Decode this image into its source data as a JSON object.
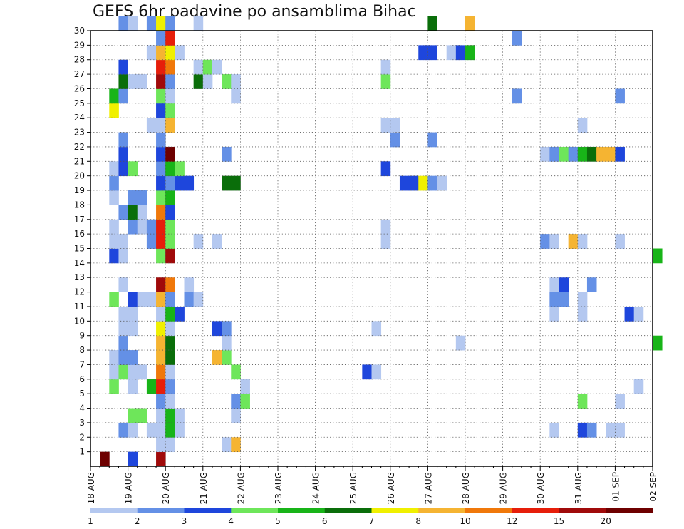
{
  "chart_data": {
    "type": "heatmap",
    "title": "GEFS 6hr padavine po ansamblima Bihac",
    "x_tick_labels": [
      "18 AUG",
      "19 AUG",
      "20 AUG",
      "21 AUG",
      "22 AUG",
      "23 AUG",
      "24 AUG",
      "25 AUG",
      "26 AUG",
      "27 AUG",
      "28 AUG",
      "29 AUG",
      "30 AUG",
      "31 AUG",
      "01 SEP",
      "02 SEP"
    ],
    "y_tick_labels": [
      "1",
      "2",
      "3",
      "4",
      "5",
      "6",
      "7",
      "8",
      "9",
      "10",
      "11",
      "12",
      "13",
      "14",
      "15",
      "16",
      "17",
      "18",
      "19",
      "20",
      "21",
      "22",
      "23",
      "24",
      "25",
      "26",
      "27",
      "28",
      "29",
      "30"
    ],
    "x_range_steps": [
      0,
      60
    ],
    "y_range": [
      0,
      30
    ],
    "grid": true,
    "colorbar": {
      "labels": [
        "1",
        "2",
        "3",
        "4",
        "5",
        "6",
        "7",
        "8",
        "10",
        "12",
        "15",
        "20"
      ],
      "colors": [
        "#b4c8f0",
        "#6490e6",
        "#1e46dc",
        "#6ee65a",
        "#18b418",
        "#0a6e0a",
        "#f0f000",
        "#f5b432",
        "#f0780a",
        "#e61e0a",
        "#a00a0a",
        "#6e0000"
      ]
    },
    "cells": [
      {
        "member": 0,
        "step": 1,
        "class": 11
      },
      {
        "member": 0,
        "step": 4,
        "class": 2
      },
      {
        "member": 0,
        "step": 7,
        "class": 10
      },
      {
        "member": 1,
        "step": 7,
        "class": 0
      },
      {
        "member": 1,
        "step": 8,
        "class": 0
      },
      {
        "member": 1,
        "step": 14,
        "class": 0
      },
      {
        "member": 1,
        "step": 15,
        "class": 7
      },
      {
        "member": 2,
        "step": 3,
        "class": 1
      },
      {
        "member": 2,
        "step": 4,
        "class": 0
      },
      {
        "member": 2,
        "step": 6,
        "class": 0
      },
      {
        "member": 2,
        "step": 7,
        "class": 0
      },
      {
        "member": 2,
        "step": 8,
        "class": 4
      },
      {
        "member": 2,
        "step": 9,
        "class": 0
      },
      {
        "member": 2,
        "step": 49,
        "class": 0
      },
      {
        "member": 2,
        "step": 52,
        "class": 2
      },
      {
        "member": 2,
        "step": 53,
        "class": 1
      },
      {
        "member": 2,
        "step": 55,
        "class": 0
      },
      {
        "member": 2,
        "step": 56,
        "class": 0
      },
      {
        "member": 3,
        "step": 4,
        "class": 3
      },
      {
        "member": 3,
        "step": 5,
        "class": 3
      },
      {
        "member": 3,
        "step": 7,
        "class": 0
      },
      {
        "member": 3,
        "step": 8,
        "class": 4
      },
      {
        "member": 3,
        "step": 9,
        "class": 0
      },
      {
        "member": 3,
        "step": 15,
        "class": 0
      },
      {
        "member": 4,
        "step": 7,
        "class": 1
      },
      {
        "member": 4,
        "step": 8,
        "class": 0
      },
      {
        "member": 4,
        "step": 15,
        "class": 1
      },
      {
        "member": 4,
        "step": 16,
        "class": 3
      },
      {
        "member": 4,
        "step": 52,
        "class": 3
      },
      {
        "member": 4,
        "step": 56,
        "class": 0
      },
      {
        "member": 5,
        "step": 2,
        "class": 3
      },
      {
        "member": 5,
        "step": 4,
        "class": 0
      },
      {
        "member": 5,
        "step": 6,
        "class": 4
      },
      {
        "member": 5,
        "step": 7,
        "class": 9
      },
      {
        "member": 5,
        "step": 8,
        "class": 1
      },
      {
        "member": 5,
        "step": 16,
        "class": 0
      },
      {
        "member": 5,
        "step": 58,
        "class": 0
      },
      {
        "member": 6,
        "step": 2,
        "class": 0
      },
      {
        "member": 6,
        "step": 3,
        "class": 3
      },
      {
        "member": 6,
        "step": 4,
        "class": 0
      },
      {
        "member": 6,
        "step": 5,
        "class": 0
      },
      {
        "member": 6,
        "step": 7,
        "class": 8
      },
      {
        "member": 6,
        "step": 8,
        "class": 0
      },
      {
        "member": 6,
        "step": 15,
        "class": 3
      },
      {
        "member": 6,
        "step": 29,
        "class": 2
      },
      {
        "member": 6,
        "step": 30,
        "class": 0
      },
      {
        "member": 7,
        "step": 2,
        "class": 0
      },
      {
        "member": 7,
        "step": 3,
        "class": 1
      },
      {
        "member": 7,
        "step": 4,
        "class": 1
      },
      {
        "member": 7,
        "step": 7,
        "class": 7
      },
      {
        "member": 7,
        "step": 8,
        "class": 5
      },
      {
        "member": 7,
        "step": 13,
        "class": 7
      },
      {
        "member": 7,
        "step": 14,
        "class": 3
      },
      {
        "member": 8,
        "step": 3,
        "class": 1
      },
      {
        "member": 8,
        "step": 7,
        "class": 7
      },
      {
        "member": 8,
        "step": 8,
        "class": 5
      },
      {
        "member": 8,
        "step": 14,
        "class": 0
      },
      {
        "member": 8,
        "step": 39,
        "class": 0
      },
      {
        "member": 8,
        "step": 60,
        "class": 4
      },
      {
        "member": 9,
        "step": 3,
        "class": 0
      },
      {
        "member": 9,
        "step": 4,
        "class": 0
      },
      {
        "member": 9,
        "step": 7,
        "class": 6
      },
      {
        "member": 9,
        "step": 8,
        "class": 0
      },
      {
        "member": 9,
        "step": 13,
        "class": 2
      },
      {
        "member": 9,
        "step": 14,
        "class": 1
      },
      {
        "member": 9,
        "step": 30,
        "class": 0
      },
      {
        "member": 10,
        "step": 3,
        "class": 0
      },
      {
        "member": 10,
        "step": 4,
        "class": 0
      },
      {
        "member": 10,
        "step": 7,
        "class": 0
      },
      {
        "member": 10,
        "step": 8,
        "class": 4
      },
      {
        "member": 10,
        "step": 9,
        "class": 2
      },
      {
        "member": 10,
        "step": 49,
        "class": 0
      },
      {
        "member": 10,
        "step": 52,
        "class": 0
      },
      {
        "member": 10,
        "step": 57,
        "class": 2
      },
      {
        "member": 10,
        "step": 58,
        "class": 0
      },
      {
        "member": 11,
        "step": 2,
        "class": 3
      },
      {
        "member": 11,
        "step": 4,
        "class": 2
      },
      {
        "member": 11,
        "step": 5,
        "class": 0
      },
      {
        "member": 11,
        "step": 6,
        "class": 0
      },
      {
        "member": 11,
        "step": 7,
        "class": 7
      },
      {
        "member": 11,
        "step": 8,
        "class": 1
      },
      {
        "member": 11,
        "step": 10,
        "class": 1
      },
      {
        "member": 11,
        "step": 11,
        "class": 0
      },
      {
        "member": 11,
        "step": 49,
        "class": 1
      },
      {
        "member": 11,
        "step": 50,
        "class": 1
      },
      {
        "member": 11,
        "step": 52,
        "class": 0
      },
      {
        "member": 12,
        "step": 3,
        "class": 0
      },
      {
        "member": 12,
        "step": 7,
        "class": 10
      },
      {
        "member": 12,
        "step": 8,
        "class": 8
      },
      {
        "member": 12,
        "step": 10,
        "class": 0
      },
      {
        "member": 12,
        "step": 49,
        "class": 0
      },
      {
        "member": 12,
        "step": 50,
        "class": 2
      },
      {
        "member": 12,
        "step": 53,
        "class": 1
      },
      {
        "member": 14,
        "step": 7,
        "class": 3
      },
      {
        "member": 14,
        "step": 8,
        "class": 10
      },
      {
        "member": 14,
        "step": 2,
        "class": 2
      },
      {
        "member": 14,
        "step": 3,
        "class": 0
      },
      {
        "member": 14,
        "step": 60,
        "class": 4
      },
      {
        "member": 15,
        "step": 2,
        "class": 0
      },
      {
        "member": 15,
        "step": 3,
        "class": 0
      },
      {
        "member": 15,
        "step": 6,
        "class": 1
      },
      {
        "member": 15,
        "step": 7,
        "class": 9
      },
      {
        "member": 15,
        "step": 8,
        "class": 3
      },
      {
        "member": 15,
        "step": 11,
        "class": 0
      },
      {
        "member": 15,
        "step": 13,
        "class": 0
      },
      {
        "member": 15,
        "step": 31,
        "class": 0
      },
      {
        "member": 15,
        "step": 48,
        "class": 1
      },
      {
        "member": 15,
        "step": 49,
        "class": 0
      },
      {
        "member": 15,
        "step": 51,
        "class": 7
      },
      {
        "member": 15,
        "step": 52,
        "class": 0
      },
      {
        "member": 15,
        "step": 56,
        "class": 0
      },
      {
        "member": 16,
        "step": 2,
        "class": 0
      },
      {
        "member": 16,
        "step": 4,
        "class": 1
      },
      {
        "member": 16,
        "step": 5,
        "class": 0
      },
      {
        "member": 16,
        "step": 6,
        "class": 1
      },
      {
        "member": 16,
        "step": 7,
        "class": 9
      },
      {
        "member": 16,
        "step": 8,
        "class": 3
      },
      {
        "member": 16,
        "step": 31,
        "class": 0
      },
      {
        "member": 17,
        "step": 3,
        "class": 1
      },
      {
        "member": 17,
        "step": 4,
        "class": 5
      },
      {
        "member": 17,
        "step": 5,
        "class": 0
      },
      {
        "member": 17,
        "step": 7,
        "class": 8
      },
      {
        "member": 17,
        "step": 8,
        "class": 2
      },
      {
        "member": 18,
        "step": 2,
        "class": 0
      },
      {
        "member": 18,
        "step": 4,
        "class": 1
      },
      {
        "member": 18,
        "step": 5,
        "class": 1
      },
      {
        "member": 18,
        "step": 7,
        "class": 3
      },
      {
        "member": 18,
        "step": 8,
        "class": 4
      },
      {
        "member": 19,
        "step": 2,
        "class": 1
      },
      {
        "member": 19,
        "step": 7,
        "class": 2
      },
      {
        "member": 19,
        "step": 8,
        "class": 1
      },
      {
        "member": 19,
        "step": 9,
        "class": 2
      },
      {
        "member": 19,
        "step": 10,
        "class": 2
      },
      {
        "member": 19,
        "step": 14,
        "class": 5
      },
      {
        "member": 19,
        "step": 15,
        "class": 5
      },
      {
        "member": 19,
        "step": 33,
        "class": 2
      },
      {
        "member": 19,
        "step": 34,
        "class": 2
      },
      {
        "member": 19,
        "step": 35,
        "class": 6
      },
      {
        "member": 19,
        "step": 36,
        "class": 1
      },
      {
        "member": 19,
        "step": 37,
        "class": 0
      },
      {
        "member": 20,
        "step": 2,
        "class": 0
      },
      {
        "member": 20,
        "step": 3,
        "class": 2
      },
      {
        "member": 20,
        "step": 4,
        "class": 3
      },
      {
        "member": 20,
        "step": 7,
        "class": 1
      },
      {
        "member": 20,
        "step": 8,
        "class": 4
      },
      {
        "member": 20,
        "step": 9,
        "class": 3
      },
      {
        "member": 20,
        "step": 31,
        "class": 2
      },
      {
        "member": 21,
        "step": 3,
        "class": 2
      },
      {
        "member": 21,
        "step": 7,
        "class": 2
      },
      {
        "member": 21,
        "step": 8,
        "class": 11
      },
      {
        "member": 21,
        "step": 14,
        "class": 1
      },
      {
        "member": 21,
        "step": 48,
        "class": 0
      },
      {
        "member": 21,
        "step": 49,
        "class": 1
      },
      {
        "member": 21,
        "step": 50,
        "class": 3
      },
      {
        "member": 21,
        "step": 51,
        "class": 1
      },
      {
        "member": 21,
        "step": 52,
        "class": 4
      },
      {
        "member": 21,
        "step": 53,
        "class": 5
      },
      {
        "member": 21,
        "step": 54,
        "class": 7
      },
      {
        "member": 21,
        "step": 55,
        "class": 7
      },
      {
        "member": 21,
        "step": 56,
        "class": 2
      },
      {
        "member": 22,
        "step": 3,
        "class": 1
      },
      {
        "member": 22,
        "step": 7,
        "class": 1
      },
      {
        "member": 22,
        "step": 32,
        "class": 1
      },
      {
        "member": 22,
        "step": 36,
        "class": 1
      },
      {
        "member": 23,
        "step": 6,
        "class": 0
      },
      {
        "member": 23,
        "step": 7,
        "class": 0
      },
      {
        "member": 23,
        "step": 8,
        "class": 7
      },
      {
        "member": 23,
        "step": 31,
        "class": 0
      },
      {
        "member": 23,
        "step": 32,
        "class": 0
      },
      {
        "member": 23,
        "step": 52,
        "class": 0
      },
      {
        "member": 24,
        "step": 2,
        "class": 6
      },
      {
        "member": 24,
        "step": 7,
        "class": 2
      },
      {
        "member": 24,
        "step": 8,
        "class": 3
      },
      {
        "member": 25,
        "step": 2,
        "class": 4
      },
      {
        "member": 25,
        "step": 3,
        "class": 1
      },
      {
        "member": 25,
        "step": 7,
        "class": 3
      },
      {
        "member": 25,
        "step": 8,
        "class": 0
      },
      {
        "member": 25,
        "step": 15,
        "class": 0
      },
      {
        "member": 25,
        "step": 45,
        "class": 1
      },
      {
        "member": 25,
        "step": 56,
        "class": 1
      },
      {
        "member": 26,
        "step": 3,
        "class": 5
      },
      {
        "member": 26,
        "step": 4,
        "class": 0
      },
      {
        "member": 26,
        "step": 5,
        "class": 0
      },
      {
        "member": 26,
        "step": 7,
        "class": 10
      },
      {
        "member": 26,
        "step": 8,
        "class": 1
      },
      {
        "member": 26,
        "step": 11,
        "class": 5
      },
      {
        "member": 26,
        "step": 12,
        "class": 0
      },
      {
        "member": 26,
        "step": 14,
        "class": 3
      },
      {
        "member": 26,
        "step": 15,
        "class": 0
      },
      {
        "member": 26,
        "step": 31,
        "class": 3
      },
      {
        "member": 27,
        "step": 3,
        "class": 2
      },
      {
        "member": 27,
        "step": 7,
        "class": 9
      },
      {
        "member": 27,
        "step": 8,
        "class": 8
      },
      {
        "member": 27,
        "step": 11,
        "class": 0
      },
      {
        "member": 27,
        "step": 12,
        "class": 3
      },
      {
        "member": 27,
        "step": 13,
        "class": 0
      },
      {
        "member": 27,
        "step": 31,
        "class": 0
      },
      {
        "member": 28,
        "step": 6,
        "class": 0
      },
      {
        "member": 28,
        "step": 7,
        "class": 7
      },
      {
        "member": 28,
        "step": 8,
        "class": 6
      },
      {
        "member": 28,
        "step": 9,
        "class": 0
      },
      {
        "member": 28,
        "step": 35,
        "class": 2
      },
      {
        "member": 28,
        "step": 36,
        "class": 2
      },
      {
        "member": 28,
        "step": 38,
        "class": 0
      },
      {
        "member": 28,
        "step": 39,
        "class": 2
      },
      {
        "member": 28,
        "step": 40,
        "class": 4
      },
      {
        "member": 29,
        "step": 7,
        "class": 1
      },
      {
        "member": 29,
        "step": 8,
        "class": 9
      },
      {
        "member": 29,
        "step": 45,
        "class": 1
      },
      {
        "member": 30,
        "step": 3,
        "class": 1
      },
      {
        "member": 30,
        "step": 4,
        "class": 0
      },
      {
        "member": 30,
        "step": 6,
        "class": 1
      },
      {
        "member": 30,
        "step": 7,
        "class": 6
      },
      {
        "member": 30,
        "step": 8,
        "class": 1
      },
      {
        "member": 30,
        "step": 11,
        "class": 0
      },
      {
        "member": 30,
        "step": 36,
        "class": 5
      },
      {
        "member": 30,
        "step": 40,
        "class": 7
      }
    ]
  }
}
